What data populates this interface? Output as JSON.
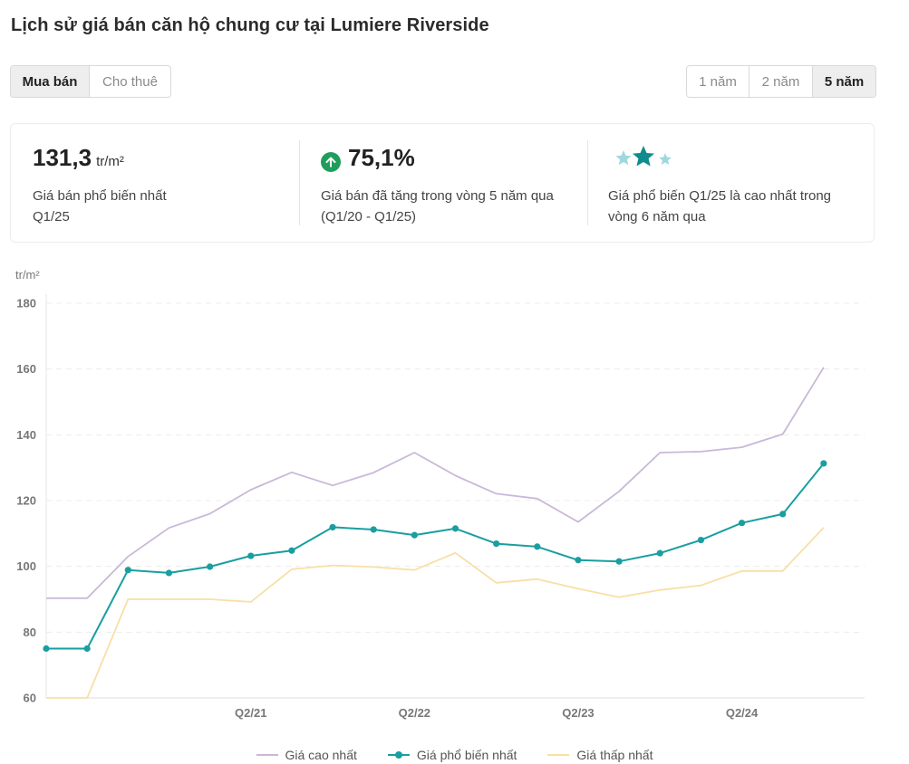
{
  "title": "Lịch sử giá bán căn hộ chung cư tại Lumiere Riverside",
  "mode_tabs": [
    {
      "label": "Mua bán",
      "active": true
    },
    {
      "label": "Cho thuê",
      "active": false
    }
  ],
  "range_tabs": [
    {
      "label": "1 năm",
      "active": false
    },
    {
      "label": "2 năm",
      "active": false
    },
    {
      "label": "5 năm",
      "active": true
    }
  ],
  "summary": {
    "common_price": {
      "value": "131,3",
      "unit": "tr/m²",
      "desc_line1": "Giá bán phổ biến nhất",
      "desc_line2": "Q1/25"
    },
    "growth": {
      "value": "75,1%",
      "icon": "arrow-up-icon",
      "icon_color": "#1e9e5a",
      "desc_line1": "Giá bán đã tăng trong vòng 5 năm qua",
      "desc_line2": "(Q1/20 - Q1/25)"
    },
    "rank": {
      "icon": "three-stars-icon",
      "desc_line1": "Giá phổ biến Q1/25 là cao nhất trong",
      "desc_line2": "vòng 6 năm qua"
    }
  },
  "chart_data": {
    "type": "line",
    "y_unit": "tr/m²",
    "ylim": [
      60,
      180
    ],
    "yticks": [
      60,
      80,
      100,
      120,
      140,
      160,
      180
    ],
    "x": [
      "Q1/20",
      "Q2/20",
      "Q3/20",
      "Q4/20",
      "Q1/21",
      "Q2/21",
      "Q3/21",
      "Q4/21",
      "Q1/22",
      "Q2/22",
      "Q3/22",
      "Q4/22",
      "Q1/23",
      "Q2/23",
      "Q3/23",
      "Q4/23",
      "Q1/24",
      "Q2/24",
      "Q3/24",
      "Q4/24",
      "Q1/25"
    ],
    "x_tick_labels": [
      "Q2/21",
      "Q2/22",
      "Q2/23",
      "Q2/24"
    ],
    "grid": "horizontal-dashed",
    "legend_position": "bottom",
    "series": [
      {
        "name": "Giá cao nhất",
        "color": "#c9b8d8",
        "markers": false,
        "values": [
          90.3,
          90.3,
          103,
          111.7,
          116,
          123.3,
          128.6,
          124.6,
          128.5,
          134.6,
          127.6,
          122.1,
          120.6,
          113.5,
          122.8,
          134.6,
          134.9,
          136.2,
          140.2,
          160.5,
          null
        ]
      },
      {
        "name": "Giá phổ biến nhất",
        "color": "#1a9ea0",
        "markers": true,
        "values": [
          75,
          75,
          98.9,
          98,
          99.9,
          103.2,
          104.8,
          111.9,
          111.2,
          109.5,
          111.5,
          106.9,
          106,
          101.9,
          101.5,
          104,
          108,
          113.2,
          115.9,
          131.3,
          null
        ]
      },
      {
        "name": "Giá thấp nhất",
        "color": "#f8dfa6",
        "markers": false,
        "values": [
          60,
          60,
          90,
          90,
          90,
          89.2,
          99.1,
          100.3,
          99.8,
          98.9,
          104.1,
          95,
          96.1,
          93.2,
          90.6,
          92.8,
          94.2,
          98.6,
          98.6,
          111.8,
          null
        ]
      }
    ]
  }
}
